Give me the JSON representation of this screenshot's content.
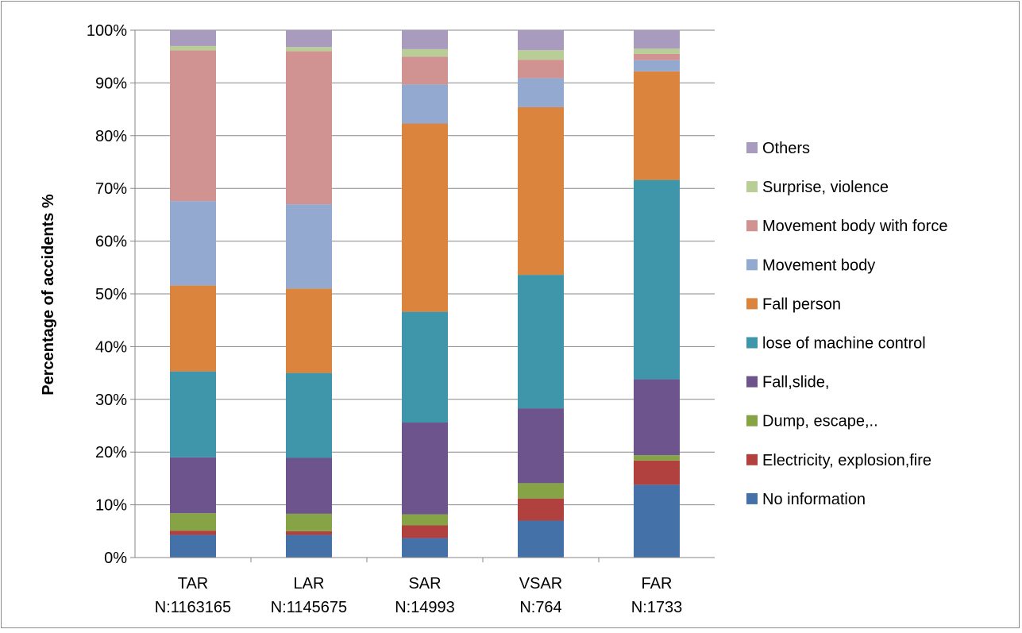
{
  "chart_data": {
    "type": "bar",
    "stacked": true,
    "normalized": true,
    "ylabel": "Percentage of accidents  %",
    "xlabel": "",
    "ylim": [
      0,
      100
    ],
    "yticks": [
      "0%",
      "10%",
      "20%",
      "30%",
      "40%",
      "50%",
      "60%",
      "70%",
      "80%",
      "90%",
      "100%"
    ],
    "grid": true,
    "legend_position": "right",
    "categories": [
      {
        "name": "TAR",
        "count": "N:1163165"
      },
      {
        "name": "LAR",
        "count": "N:1145675"
      },
      {
        "name": "SAR",
        "count": "N:14993"
      },
      {
        "name": "VSAR",
        "count": "N:764"
      },
      {
        "name": "FAR",
        "count": "N:1733"
      }
    ],
    "series": [
      {
        "name": "No information",
        "color": "#4472a8",
        "values": [
          4.3,
          4.3,
          3.7,
          7.0,
          13.8
        ]
      },
      {
        "name": "Electricity, explosion,fire",
        "color": "#b0413e",
        "values": [
          0.8,
          0.7,
          2.4,
          4.2,
          4.6
        ]
      },
      {
        "name": "Dump, escape,..",
        "color": "#86a446",
        "values": [
          3.3,
          3.3,
          2.1,
          2.9,
          1.0
        ]
      },
      {
        "name": "Fall,slide,",
        "color": "#6e548c",
        "values": [
          10.6,
          10.6,
          17.4,
          14.2,
          14.4
        ]
      },
      {
        "name": "lose of machine control",
        "color": "#3f96ab",
        "values": [
          16.3,
          16.1,
          21.0,
          25.3,
          37.8
        ]
      },
      {
        "name": "Fall person",
        "color": "#db843d",
        "values": [
          16.3,
          16.0,
          35.7,
          31.8,
          20.6
        ]
      },
      {
        "name": "Movement body",
        "color": "#93a9cf",
        "values": [
          16.0,
          16.0,
          7.4,
          5.5,
          2.1
        ]
      },
      {
        "name": "Movement body with force",
        "color": "#d19392",
        "values": [
          28.6,
          29.0,
          5.3,
          3.5,
          1.2
        ]
      },
      {
        "name": "Surprise, violence",
        "color": "#b9cd96",
        "values": [
          0.8,
          0.8,
          1.4,
          1.8,
          1.0
        ]
      },
      {
        "name": "Others",
        "color": "#a99bbd",
        "values": [
          3.0,
          3.2,
          3.6,
          3.8,
          3.5
        ]
      }
    ]
  },
  "colors": {
    "grid": "#878787",
    "axis": "#878787",
    "frame": "#8c8c8c"
  }
}
